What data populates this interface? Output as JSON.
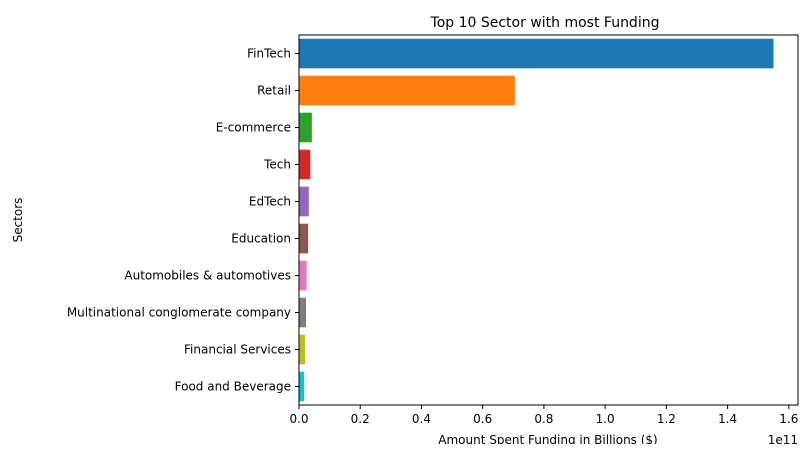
{
  "chart_data": {
    "type": "bar",
    "orientation": "horizontal",
    "title": "Top 10 Sector with most Funding",
    "xlabel": "Amount Spent Funding in Billions ($)",
    "ylabel": "Sectors",
    "x_offset_text": "1e11",
    "xlim": [
      0,
      1.63
    ],
    "x_ticks": [
      "0.0",
      "0.2",
      "0.4",
      "0.6",
      "0.8",
      "1.0",
      "1.2",
      "1.4",
      "1.6"
    ],
    "x_tick_values": [
      0.0,
      0.2,
      0.4,
      0.6,
      0.8,
      1.0,
      1.2,
      1.4,
      1.6
    ],
    "grid": false,
    "categories": [
      "FinTech",
      "Retail",
      "E-commerce",
      "Tech",
      "EdTech",
      "Education",
      "Automobiles & automotives",
      "Multinational conglomerate company",
      "Financial Services",
      "Food and Beverage"
    ],
    "values": [
      1.55,
      0.705,
      0.042,
      0.037,
      0.032,
      0.03,
      0.025,
      0.023,
      0.02,
      0.017
    ],
    "colors": [
      "#1f77b4",
      "#ff7f0e",
      "#2ca02c",
      "#d62728",
      "#9467bd",
      "#8c564b",
      "#e377c2",
      "#7f7f7f",
      "#bcbd22",
      "#17becf"
    ]
  }
}
